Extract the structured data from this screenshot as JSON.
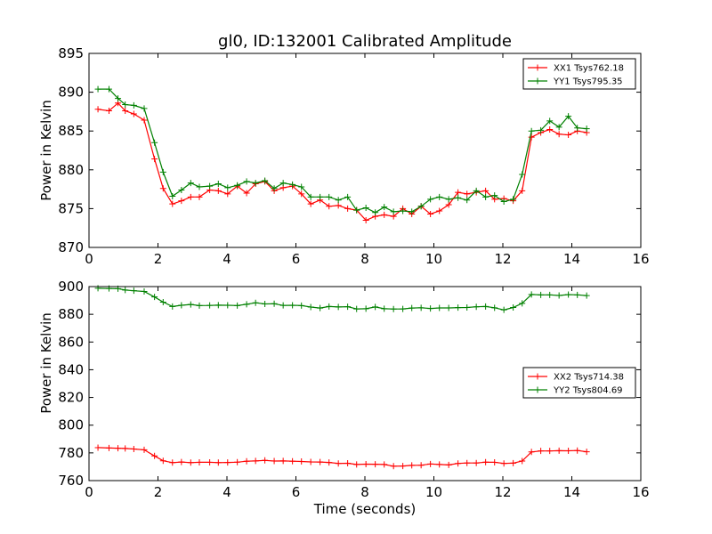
{
  "chart_data": [
    {
      "type": "line",
      "title": "gl0, ID:132001 Calibrated Amplitude",
      "xlabel": "",
      "ylabel": "Power in Kelvin",
      "xlim": [
        0,
        16
      ],
      "ylim": [
        870,
        895
      ],
      "xticks": [
        "0",
        "2",
        "4",
        "6",
        "8",
        "10",
        "12",
        "14",
        "16"
      ],
      "yticks": [
        "870",
        "875",
        "880",
        "885",
        "890",
        "895"
      ],
      "legend_position": "top-right",
      "x": [
        0.26,
        0.58,
        0.84,
        1.05,
        1.3,
        1.6,
        1.9,
        2.15,
        2.42,
        2.68,
        2.95,
        3.2,
        3.5,
        3.75,
        4.02,
        4.3,
        4.57,
        4.83,
        5.1,
        5.37,
        5.63,
        5.9,
        6.16,
        6.43,
        6.7,
        6.96,
        7.23,
        7.5,
        7.76,
        8.03,
        8.3,
        8.56,
        8.83,
        9.1,
        9.36,
        9.63,
        9.9,
        10.16,
        10.43,
        10.7,
        10.96,
        11.23,
        11.5,
        11.76,
        12.03,
        12.3,
        12.56,
        12.83,
        13.1,
        13.36,
        13.63,
        13.9,
        14.16,
        14.43
      ],
      "series": [
        {
          "name": "XX1 Tsys762.18",
          "color": "#ff0000",
          "values": [
            887.8,
            887.6,
            888.6,
            887.6,
            887.2,
            886.4,
            881.4,
            877.6,
            875.6,
            876.0,
            876.5,
            876.5,
            877.4,
            877.3,
            876.9,
            877.9,
            877.0,
            878.2,
            878.5,
            877.3,
            877.7,
            877.9,
            876.9,
            875.6,
            876.1,
            875.3,
            875.4,
            875.0,
            874.8,
            873.5,
            874.0,
            874.2,
            874.0,
            875.0,
            874.3,
            875.3,
            874.3,
            874.7,
            875.5,
            877.1,
            876.9,
            877.1,
            877.3,
            876.2,
            876.3,
            876.0,
            877.3,
            884.2,
            884.8,
            885.2,
            884.6,
            884.5,
            885.0,
            884.8
          ]
        },
        {
          "name": "YY1 Tsys795.35",
          "color": "#008000",
          "values": [
            890.4,
            890.4,
            889.2,
            888.4,
            888.3,
            887.9,
            883.5,
            879.7,
            876.6,
            877.4,
            878.3,
            877.8,
            877.9,
            878.2,
            877.7,
            878.0,
            878.5,
            878.3,
            878.6,
            877.6,
            878.3,
            878.1,
            877.8,
            876.5,
            876.5,
            876.5,
            876.1,
            876.5,
            874.8,
            875.1,
            874.5,
            875.2,
            874.6,
            874.7,
            874.6,
            875.3,
            876.2,
            876.5,
            876.2,
            876.4,
            876.1,
            877.3,
            876.5,
            876.7,
            875.9,
            876.2,
            879.4,
            885.0,
            885.1,
            886.3,
            885.5,
            886.9,
            885.4,
            885.3
          ]
        }
      ]
    },
    {
      "type": "line",
      "title": "",
      "xlabel": "Time (seconds)",
      "ylabel": "Power in Kelvin",
      "xlim": [
        0,
        16
      ],
      "ylim": [
        760,
        900
      ],
      "xticks": [
        "0",
        "2",
        "4",
        "6",
        "8",
        "10",
        "12",
        "14",
        "16"
      ],
      "yticks": [
        "760",
        "780",
        "800",
        "820",
        "840",
        "860",
        "880",
        "900"
      ],
      "legend_position": "center-right",
      "x": [
        0.26,
        0.58,
        0.84,
        1.05,
        1.3,
        1.6,
        1.9,
        2.15,
        2.42,
        2.68,
        2.95,
        3.2,
        3.5,
        3.75,
        4.02,
        4.3,
        4.57,
        4.83,
        5.1,
        5.37,
        5.63,
        5.9,
        6.16,
        6.43,
        6.7,
        6.96,
        7.23,
        7.5,
        7.76,
        8.03,
        8.3,
        8.56,
        8.83,
        9.1,
        9.36,
        9.63,
        9.9,
        10.16,
        10.43,
        10.7,
        10.96,
        11.23,
        11.5,
        11.76,
        12.03,
        12.3,
        12.56,
        12.83,
        13.1,
        13.36,
        13.63,
        13.9,
        14.16,
        14.43
      ],
      "series": [
        {
          "name": "XX2 Tsys714.38",
          "color": "#ff0000",
          "values": [
            783.8,
            783.5,
            783.4,
            783.2,
            782.8,
            782.2,
            777.8,
            774.3,
            773.0,
            773.4,
            773.0,
            773.2,
            773.2,
            773.0,
            773.1,
            773.3,
            774.0,
            774.2,
            774.6,
            774.1,
            774.2,
            774.0,
            773.8,
            773.5,
            773.4,
            773.1,
            772.4,
            772.5,
            771.6,
            771.9,
            771.8,
            771.6,
            770.4,
            770.5,
            771.0,
            771.1,
            772.0,
            771.6,
            771.3,
            772.4,
            772.7,
            772.7,
            773.3,
            773.2,
            772.4,
            772.6,
            774.1,
            780.7,
            781.4,
            781.4,
            781.6,
            781.5,
            781.7,
            780.8
          ]
        },
        {
          "name": "YY2 Tsys804.69",
          "color": "#008000",
          "values": [
            898.8,
            898.6,
            898.5,
            897.5,
            897.0,
            896.5,
            892.5,
            888.8,
            885.6,
            886.5,
            887.1,
            886.3,
            886.4,
            886.6,
            886.5,
            886.3,
            887.2,
            888.3,
            887.5,
            887.6,
            886.4,
            886.5,
            886.3,
            885.2,
            884.5,
            885.6,
            885.3,
            885.5,
            883.9,
            884.0,
            885.3,
            884.0,
            883.8,
            883.9,
            884.5,
            884.7,
            884.2,
            884.6,
            884.6,
            884.8,
            884.9,
            885.4,
            885.6,
            884.7,
            883.2,
            884.9,
            887.9,
            894.3,
            894.0,
            894.0,
            893.6,
            894.2,
            894.0,
            893.5
          ]
        }
      ]
    }
  ]
}
